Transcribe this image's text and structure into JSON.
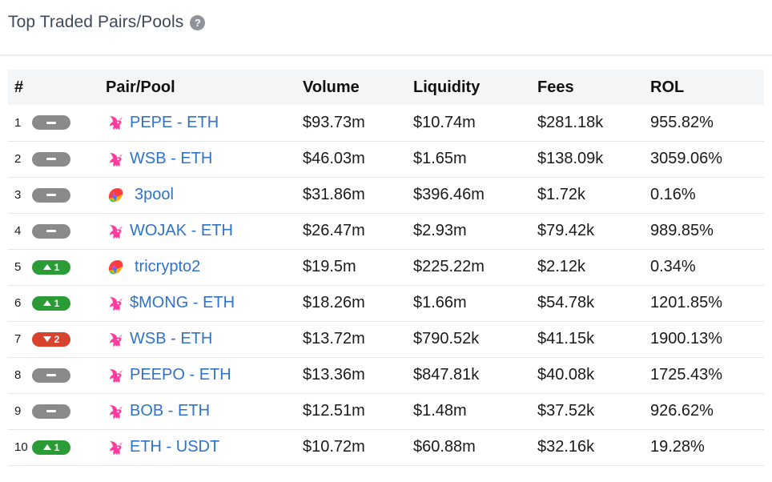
{
  "header": {
    "title": "Top Traded Pairs/Pools",
    "help_icon": "question-circle-icon"
  },
  "table": {
    "columns": [
      "#",
      "Pair/Pool",
      "Volume",
      "Liquidity",
      "Fees",
      "ROL"
    ],
    "rows": [
      {
        "rank": "1",
        "change_dir": "neutral",
        "change": "",
        "icon": "uniswap-unicorn-icon",
        "pair": "PEPE - ETH",
        "volume": "$93.73m",
        "liquidity": "$10.74m",
        "fees": "$281.18k",
        "rol": "955.82%"
      },
      {
        "rank": "2",
        "change_dir": "neutral",
        "change": "",
        "icon": "uniswap-unicorn-icon",
        "pair": "WSB - ETH",
        "volume": "$46.03m",
        "liquidity": "$1.65m",
        "fees": "$138.09k",
        "rol": "3059.06%"
      },
      {
        "rank": "3",
        "change_dir": "neutral",
        "change": "",
        "icon": "curve-rainbow-icon",
        "pair": "3pool",
        "volume": "$31.86m",
        "liquidity": "$396.46m",
        "fees": "$1.72k",
        "rol": "0.16%"
      },
      {
        "rank": "4",
        "change_dir": "neutral",
        "change": "",
        "icon": "uniswap-unicorn-icon",
        "pair": "WOJAK - ETH",
        "volume": "$26.47m",
        "liquidity": "$2.93m",
        "fees": "$79.42k",
        "rol": "989.85%"
      },
      {
        "rank": "5",
        "change_dir": "up",
        "change": "1",
        "icon": "curve-rainbow-icon",
        "pair": "tricrypto2",
        "volume": "$19.5m",
        "liquidity": "$225.22m",
        "fees": "$2.12k",
        "rol": "0.34%"
      },
      {
        "rank": "6",
        "change_dir": "up",
        "change": "1",
        "icon": "uniswap-unicorn-icon",
        "pair": "$MONG - ETH",
        "volume": "$18.26m",
        "liquidity": "$1.66m",
        "fees": "$54.78k",
        "rol": "1201.85%"
      },
      {
        "rank": "7",
        "change_dir": "down",
        "change": "2",
        "icon": "uniswap-unicorn-icon",
        "pair": "WSB - ETH",
        "volume": "$13.72m",
        "liquidity": "$790.52k",
        "fees": "$41.15k",
        "rol": "1900.13%"
      },
      {
        "rank": "8",
        "change_dir": "neutral",
        "change": "",
        "icon": "uniswap-unicorn-icon",
        "pair": "PEEPO - ETH",
        "volume": "$13.36m",
        "liquidity": "$847.81k",
        "fees": "$40.08k",
        "rol": "1725.43%"
      },
      {
        "rank": "9",
        "change_dir": "neutral",
        "change": "",
        "icon": "uniswap-unicorn-icon",
        "pair": "BOB - ETH",
        "volume": "$12.51m",
        "liquidity": "$1.48m",
        "fees": "$37.52k",
        "rol": "926.62%"
      },
      {
        "rank": "10",
        "change_dir": "up",
        "change": "1",
        "icon": "uniswap-unicorn-icon",
        "pair": "ETH - USDT",
        "volume": "$10.72m",
        "liquidity": "$60.88m",
        "fees": "$32.16k",
        "rol": "19.28%"
      }
    ]
  },
  "colors": {
    "link": "#2f73c9",
    "badge_neutral": "#8a8a8a",
    "badge_up": "#2b9b36",
    "badge_down": "#d8432d",
    "header_bg": "#f4f5f7"
  }
}
